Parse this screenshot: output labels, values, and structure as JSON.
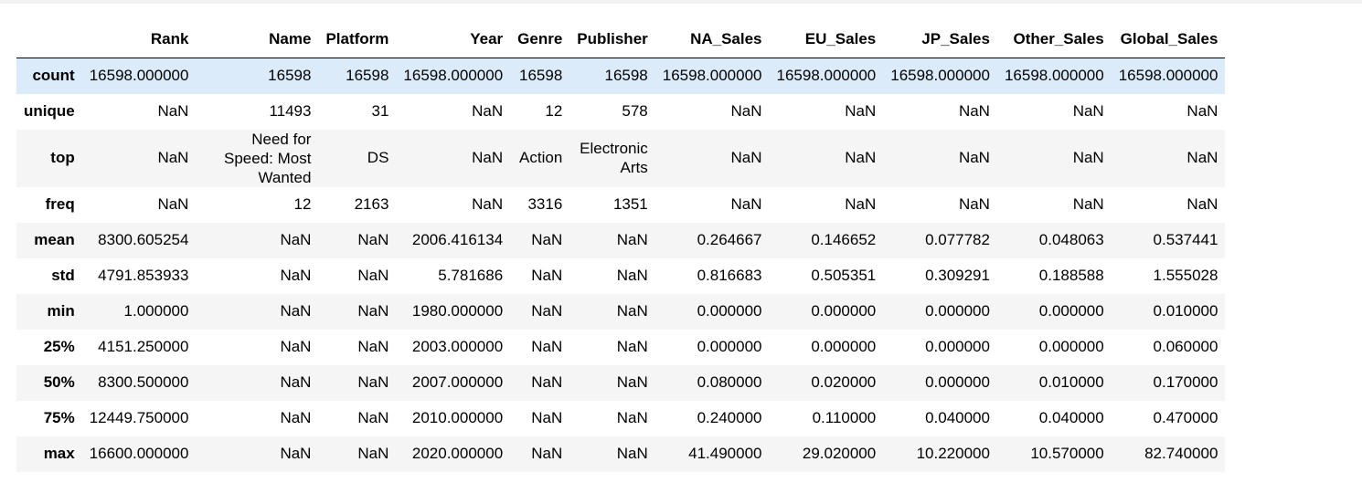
{
  "table": {
    "index_header": "",
    "columns": [
      "Rank",
      "Name",
      "Platform",
      "Year",
      "Genre",
      "Publisher",
      "NA_Sales",
      "EU_Sales",
      "JP_Sales",
      "Other_Sales",
      "Global_Sales"
    ],
    "rows": [
      {
        "label": "count",
        "cells": [
          "16598.000000",
          "16598",
          "16598",
          "16598.000000",
          "16598",
          "16598",
          "16598.000000",
          "16598.000000",
          "16598.000000",
          "16598.000000",
          "16598.000000"
        ]
      },
      {
        "label": "unique",
        "cells": [
          "NaN",
          "11493",
          "31",
          "NaN",
          "12",
          "578",
          "NaN",
          "NaN",
          "NaN",
          "NaN",
          "NaN"
        ]
      },
      {
        "label": "top",
        "cells": [
          "NaN",
          "Need for Speed: Most Wanted",
          "DS",
          "NaN",
          "Action",
          "Electronic Arts",
          "NaN",
          "NaN",
          "NaN",
          "NaN",
          "NaN"
        ]
      },
      {
        "label": "freq",
        "cells": [
          "NaN",
          "12",
          "2163",
          "NaN",
          "3316",
          "1351",
          "NaN",
          "NaN",
          "NaN",
          "NaN",
          "NaN"
        ]
      },
      {
        "label": "mean",
        "cells": [
          "8300.605254",
          "NaN",
          "NaN",
          "2006.416134",
          "NaN",
          "NaN",
          "0.264667",
          "0.146652",
          "0.077782",
          "0.048063",
          "0.537441"
        ]
      },
      {
        "label": "std",
        "cells": [
          "4791.853933",
          "NaN",
          "NaN",
          "5.781686",
          "NaN",
          "NaN",
          "0.816683",
          "0.505351",
          "0.309291",
          "0.188588",
          "1.555028"
        ]
      },
      {
        "label": "min",
        "cells": [
          "1.000000",
          "NaN",
          "NaN",
          "1980.000000",
          "NaN",
          "NaN",
          "0.000000",
          "0.000000",
          "0.000000",
          "0.000000",
          "0.010000"
        ]
      },
      {
        "label": "25%",
        "cells": [
          "4151.250000",
          "NaN",
          "NaN",
          "2003.000000",
          "NaN",
          "NaN",
          "0.000000",
          "0.000000",
          "0.000000",
          "0.000000",
          "0.060000"
        ]
      },
      {
        "label": "50%",
        "cells": [
          "8300.500000",
          "NaN",
          "NaN",
          "2007.000000",
          "NaN",
          "NaN",
          "0.080000",
          "0.020000",
          "0.000000",
          "0.010000",
          "0.170000"
        ]
      },
      {
        "label": "75%",
        "cells": [
          "12449.750000",
          "NaN",
          "NaN",
          "2010.000000",
          "NaN",
          "NaN",
          "0.240000",
          "0.110000",
          "0.040000",
          "0.040000",
          "0.470000"
        ]
      },
      {
        "label": "max",
        "cells": [
          "16600.000000",
          "NaN",
          "NaN",
          "2020.000000",
          "NaN",
          "NaN",
          "41.490000",
          "29.020000",
          "10.220000",
          "10.570000",
          "82.740000"
        ]
      }
    ]
  },
  "colors": {
    "row_highlight": "#dcebf9",
    "row_stripe": "#f5f5f5",
    "header_rule": "#000000"
  }
}
